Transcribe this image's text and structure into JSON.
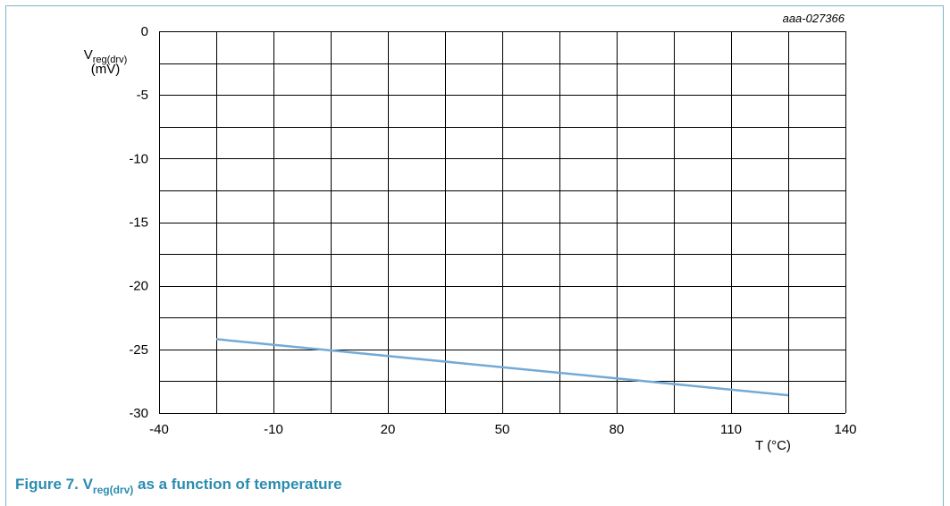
{
  "figure_id": "aaa-027366",
  "caption": {
    "prefix": "Figure 7.  V",
    "subscript": "reg(drv)",
    "suffix": " as a function of temperature"
  },
  "colors": {
    "series": "#74aad6",
    "grid": "#000000",
    "caption": "#2a8cb0",
    "frame": "#7fb6c6"
  },
  "chart_data": {
    "type": "line",
    "title": "",
    "ylabel_main": "V",
    "ylabel_sub": "reg(drv)",
    "ylabel_unit": "(mV)",
    "xlabel": "T (°C)",
    "xlim": [
      -40,
      140
    ],
    "ylim": [
      -30,
      0
    ],
    "x_ticks": [
      -40,
      -10,
      20,
      50,
      80,
      110,
      140
    ],
    "y_ticks": [
      0,
      -5,
      -10,
      -15,
      -20,
      -25,
      -30
    ],
    "x_gridlines": [
      -40,
      -25,
      -10,
      5,
      20,
      35,
      50,
      65,
      80,
      95,
      110,
      125,
      140
    ],
    "y_gridlines": [
      0,
      -2.5,
      -5,
      -7.5,
      -10,
      -12.5,
      -15,
      -17.5,
      -20,
      -22.5,
      -25,
      -27.5,
      -30
    ],
    "grid": true,
    "series": [
      {
        "x": [
          -25,
          125
        ],
        "y": [
          -24.2,
          -28.6
        ]
      }
    ]
  }
}
